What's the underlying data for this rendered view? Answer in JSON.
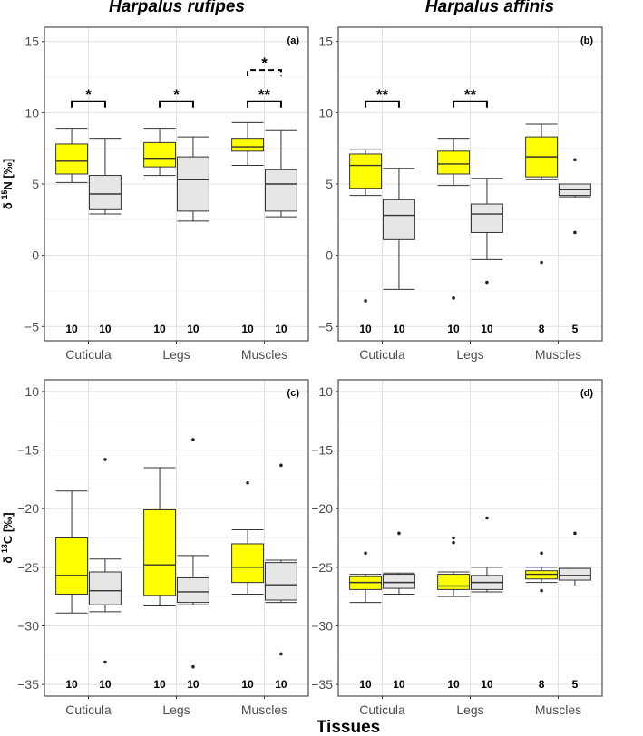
{
  "figure": {
    "titles": [
      "Harpalus rufipes",
      "Harpalus affinis"
    ],
    "xlabel": "Tissues",
    "colors": {
      "group1": "#ffff00",
      "group2": "#e6e6e6",
      "grid_major": "#e2e2e2",
      "grid_minor": "#f1f1f1",
      "frame": "#4d4d4d",
      "line": "#333333"
    }
  },
  "chart_data": [
    {
      "type": "boxplot",
      "panel_label": "(a)",
      "species": "Harpalus rufipes",
      "ylabel_prefix": "δ ",
      "ylabel_sup": "15",
      "ylabel_suffix": "N [‰]",
      "ylim": [
        -6,
        16
      ],
      "yticks": [
        -5,
        0,
        5,
        10,
        15
      ],
      "yticklabels": [
        "−5",
        "0",
        "5",
        "10",
        "15"
      ],
      "categories": [
        "Cuticula",
        "Legs",
        "Muscles"
      ],
      "groups": [
        {
          "color": "#ffff00",
          "boxes": [
            {
              "min": 5.1,
              "q1": 5.7,
              "median": 6.6,
              "q3": 7.8,
              "max": 8.9,
              "outliers": []
            },
            {
              "min": 5.6,
              "q1": 6.2,
              "median": 6.8,
              "q3": 7.9,
              "max": 8.9,
              "outliers": []
            },
            {
              "min": 6.3,
              "q1": 7.3,
              "median": 7.6,
              "q3": 8.2,
              "max": 9.3,
              "outliers": []
            }
          ]
        },
        {
          "color": "#e6e6e6",
          "boxes": [
            {
              "min": 2.9,
              "q1": 3.2,
              "median": 4.3,
              "q3": 5.6,
              "max": 8.2,
              "outliers": []
            },
            {
              "min": 2.4,
              "q1": 3.1,
              "median": 5.3,
              "q3": 6.9,
              "max": 8.3,
              "outliers": []
            },
            {
              "min": 2.7,
              "q1": 3.1,
              "median": 5.0,
              "q3": 6.0,
              "max": 8.8,
              "outliers": []
            }
          ]
        }
      ],
      "n": [
        [
          "10",
          "10"
        ],
        [
          "10",
          "10"
        ],
        [
          "10",
          "10"
        ]
      ],
      "brackets": [
        {
          "cat": 0,
          "y": 10.8,
          "label": "*",
          "dashed": false
        },
        {
          "cat": 1,
          "y": 10.8,
          "label": "*",
          "dashed": false
        },
        {
          "cat": 2,
          "y": 10.8,
          "label": "**",
          "dashed": false
        },
        {
          "cat": 2,
          "y": 13.0,
          "label": "*",
          "dashed": true
        }
      ]
    },
    {
      "type": "boxplot",
      "panel_label": "(b)",
      "species": "Harpalus affinis",
      "ylabel_prefix": "",
      "ylabel_sup": "",
      "ylabel_suffix": "",
      "ylim": [
        -6,
        16
      ],
      "yticks": [
        -5,
        0,
        5,
        10,
        15
      ],
      "yticklabels": [
        "−5",
        "0",
        "5",
        "10",
        "15"
      ],
      "categories": [
        "Cuticula",
        "Legs",
        "Muscles"
      ],
      "groups": [
        {
          "color": "#ffff00",
          "boxes": [
            {
              "min": 4.2,
              "q1": 4.7,
              "median": 6.3,
              "q3": 7.1,
              "max": 7.4,
              "outliers": [
                -3.2
              ]
            },
            {
              "min": 4.9,
              "q1": 5.7,
              "median": 6.4,
              "q3": 7.3,
              "max": 8.2,
              "outliers": [
                -3.0
              ]
            },
            {
              "min": 5.3,
              "q1": 5.5,
              "median": 6.9,
              "q3": 8.3,
              "max": 9.2,
              "outliers": [
                -0.5
              ]
            }
          ]
        },
        {
          "color": "#e6e6e6",
          "boxes": [
            {
              "min": -2.4,
              "q1": 1.1,
              "median": 2.8,
              "q3": 3.9,
              "max": 6.1,
              "outliers": []
            },
            {
              "min": -0.3,
              "q1": 1.6,
              "median": 2.9,
              "q3": 3.6,
              "max": 5.4,
              "outliers": [
                -1.9
              ]
            },
            {
              "min": 4.1,
              "q1": 4.2,
              "median": 4.6,
              "q3": 5.0,
              "max": 5.0,
              "outliers": [
                6.7,
                1.6
              ]
            }
          ]
        }
      ],
      "n": [
        [
          "10",
          "10"
        ],
        [
          "10",
          "10"
        ],
        [
          "8",
          "5"
        ]
      ],
      "brackets": [
        {
          "cat": 0,
          "y": 10.8,
          "label": "**",
          "dashed": false
        },
        {
          "cat": 1,
          "y": 10.8,
          "label": "**",
          "dashed": false
        }
      ]
    },
    {
      "type": "boxplot",
      "panel_label": "(c)",
      "species": "Harpalus rufipes",
      "ylabel_prefix": "δ ",
      "ylabel_sup": "13",
      "ylabel_suffix": "C [‰]",
      "ylim": [
        -36,
        -9
      ],
      "yticks": [
        -35,
        -30,
        -25,
        -20,
        -15,
        -10
      ],
      "yticklabels": [
        "−35",
        "−30",
        "−25",
        "−20",
        "−15",
        "−10"
      ],
      "categories": [
        "Cuticula",
        "Legs",
        "Muscles"
      ],
      "groups": [
        {
          "color": "#ffff00",
          "boxes": [
            {
              "min": -28.9,
              "q1": -27.3,
              "median": -25.7,
              "q3": -22.5,
              "max": -18.5,
              "outliers": []
            },
            {
              "min": -28.3,
              "q1": -27.4,
              "median": -24.8,
              "q3": -20.1,
              "max": -16.5,
              "outliers": []
            },
            {
              "min": -27.3,
              "q1": -26.3,
              "median": -25.0,
              "q3": -23.0,
              "max": -21.8,
              "outliers": [
                -17.8
              ]
            }
          ]
        },
        {
          "color": "#e6e6e6",
          "boxes": [
            {
              "min": -28.8,
              "q1": -28.2,
              "median": -27.0,
              "q3": -25.4,
              "max": -24.3,
              "outliers": [
                -15.8,
                -33.1
              ]
            },
            {
              "min": -28.2,
              "q1": -28.0,
              "median": -27.1,
              "q3": -25.9,
              "max": -24.0,
              "outliers": [
                -14.1,
                -33.5
              ]
            },
            {
              "min": -28.0,
              "q1": -27.8,
              "median": -26.5,
              "q3": -24.6,
              "max": -24.4,
              "outliers": [
                -16.3,
                -32.4
              ]
            }
          ]
        }
      ],
      "n": [
        [
          "10",
          "10"
        ],
        [
          "10",
          "10"
        ],
        [
          "10",
          "10"
        ]
      ],
      "brackets": []
    },
    {
      "type": "boxplot",
      "panel_label": "(d)",
      "species": "Harpalus affinis",
      "ylabel_prefix": "",
      "ylabel_sup": "",
      "ylabel_suffix": "",
      "ylim": [
        -36,
        -9
      ],
      "yticks": [
        -35,
        -30,
        -25,
        -20,
        -15,
        -10
      ],
      "yticklabels": [
        "−35",
        "−30",
        "−25",
        "−20",
        "−15",
        "−10"
      ],
      "categories": [
        "Cuticula",
        "Legs",
        "Muscles"
      ],
      "groups": [
        {
          "color": "#ffff00",
          "boxes": [
            {
              "min": -28.0,
              "q1": -26.9,
              "median": -26.3,
              "q3": -25.8,
              "max": -25.6,
              "outliers": [
                -23.8
              ]
            },
            {
              "min": -27.5,
              "q1": -26.9,
              "median": -26.6,
              "q3": -25.6,
              "max": -25.4,
              "outliers": [
                -22.5,
                -22.9
              ]
            },
            {
              "min": -26.3,
              "q1": -26.0,
              "median": -25.6,
              "q3": -25.3,
              "max": -25.0,
              "outliers": [
                -23.8,
                -27.0
              ]
            }
          ]
        },
        {
          "color": "#e6e6e6",
          "boxes": [
            {
              "min": -27.3,
              "q1": -26.8,
              "median": -26.3,
              "q3": -25.6,
              "max": -25.5,
              "outliers": [
                -22.1
              ]
            },
            {
              "min": -27.1,
              "q1": -26.9,
              "median": -26.3,
              "q3": -25.7,
              "max": -25.0,
              "outliers": [
                -20.8
              ]
            },
            {
              "min": -26.6,
              "q1": -26.1,
              "median": -25.7,
              "q3": -25.1,
              "max": -25.1,
              "outliers": [
                -22.1
              ]
            }
          ]
        }
      ],
      "n": [
        [
          "10",
          "10"
        ],
        [
          "10",
          "10"
        ],
        [
          "8",
          "5"
        ]
      ],
      "brackets": []
    }
  ]
}
